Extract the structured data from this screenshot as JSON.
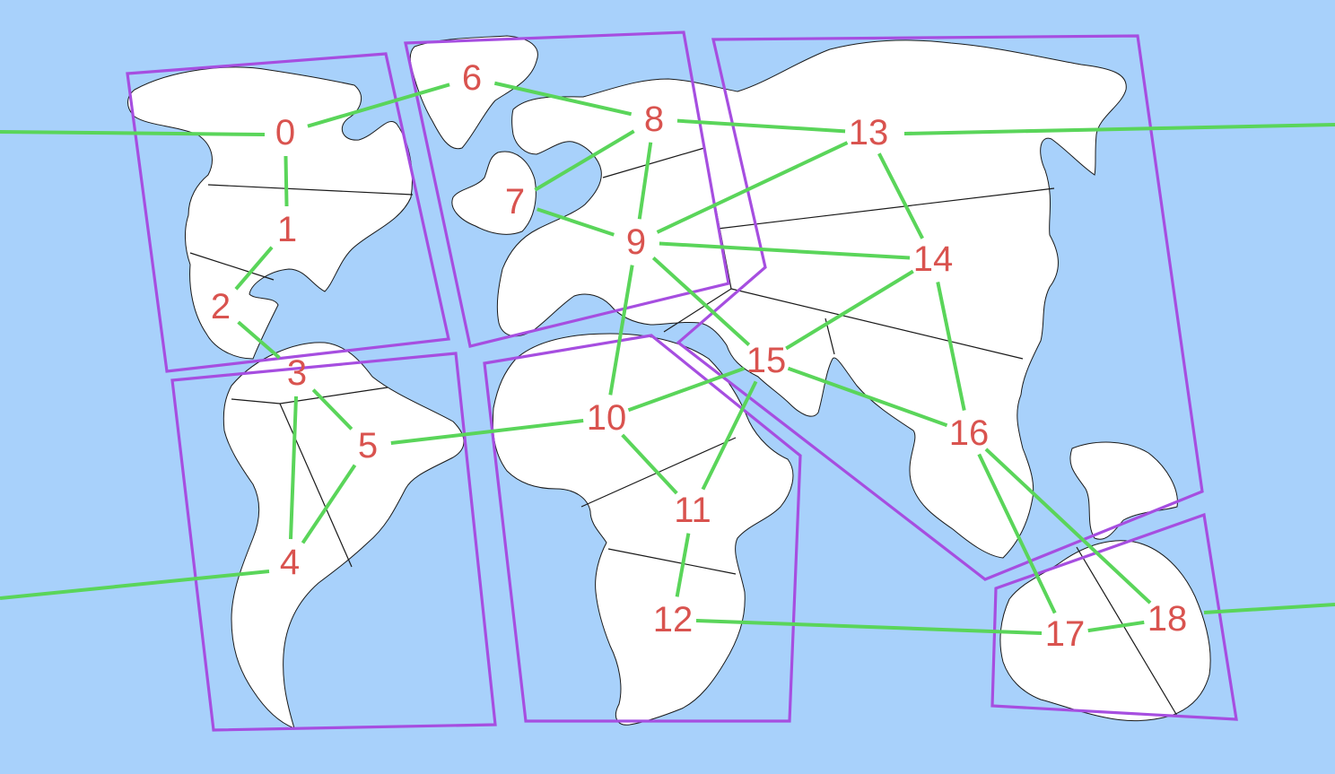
{
  "colors": {
    "ocean": "#a8d1fb",
    "land": "#ffffff",
    "edge": "#5ad55a",
    "region": "#a64ee0",
    "label": "#d9534f"
  },
  "nodes": [
    {
      "id": "0",
      "label": "0"
    },
    {
      "id": "1",
      "label": "1"
    },
    {
      "id": "2",
      "label": "2"
    },
    {
      "id": "3",
      "label": "3"
    },
    {
      "id": "4",
      "label": "4"
    },
    {
      "id": "5",
      "label": "5"
    },
    {
      "id": "6",
      "label": "6"
    },
    {
      "id": "7",
      "label": "7"
    },
    {
      "id": "8",
      "label": "8"
    },
    {
      "id": "9",
      "label": "9"
    },
    {
      "id": "10",
      "label": "10"
    },
    {
      "id": "11",
      "label": "11"
    },
    {
      "id": "12",
      "label": "12"
    },
    {
      "id": "13",
      "label": "13"
    },
    {
      "id": "14",
      "label": "14"
    },
    {
      "id": "15",
      "label": "15"
    },
    {
      "id": "16",
      "label": "16"
    },
    {
      "id": "17",
      "label": "17"
    },
    {
      "id": "18",
      "label": "18"
    }
  ],
  "edges": [
    [
      "0",
      "1"
    ],
    [
      "0",
      "6"
    ],
    [
      "1",
      "2"
    ],
    [
      "2",
      "3"
    ],
    [
      "3",
      "4"
    ],
    [
      "3",
      "5"
    ],
    [
      "4",
      "5"
    ],
    [
      "5",
      "10"
    ],
    [
      "6",
      "8"
    ],
    [
      "7",
      "8"
    ],
    [
      "7",
      "9"
    ],
    [
      "8",
      "9"
    ],
    [
      "8",
      "13"
    ],
    [
      "9",
      "10"
    ],
    [
      "9",
      "13"
    ],
    [
      "9",
      "14"
    ],
    [
      "9",
      "15"
    ],
    [
      "10",
      "11"
    ],
    [
      "10",
      "15"
    ],
    [
      "11",
      "12"
    ],
    [
      "11",
      "15"
    ],
    [
      "12",
      "17"
    ],
    [
      "13",
      "14"
    ],
    [
      "14",
      "15"
    ],
    [
      "14",
      "16"
    ],
    [
      "15",
      "16"
    ],
    [
      "16",
      "17"
    ],
    [
      "16",
      "18"
    ],
    [
      "17",
      "18"
    ]
  ],
  "wrap_edges": [
    [
      "0",
      "13"
    ],
    [
      "4",
      "18"
    ]
  ]
}
